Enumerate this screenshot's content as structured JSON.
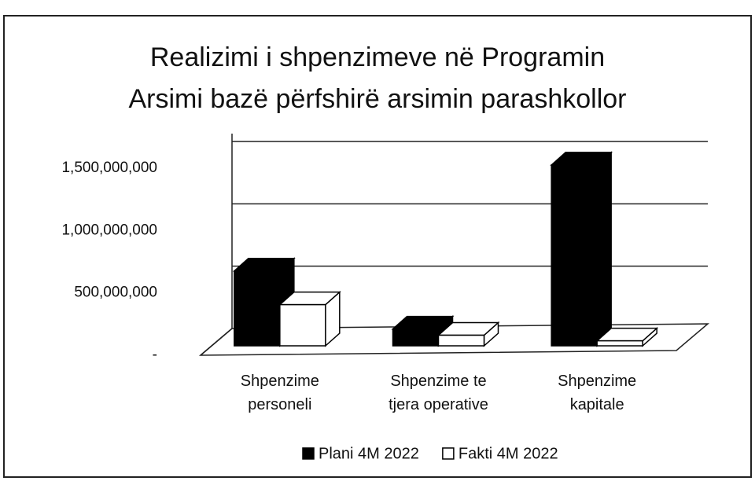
{
  "chart_data": {
    "type": "bar3d",
    "title": [
      "Realizimi i shpenzimeve në Programin",
      "Arsimi bazë përfshirë arsimin parashkollor"
    ],
    "categories": [
      "Shpenzime personeli",
      "Shpenzime te tjera operative",
      "Shpenzime kapitale"
    ],
    "series": [
      {
        "name": "Plani 4M 2022",
        "color": "#000000",
        "values": [
          600000000,
          135000000,
          1450000000
        ]
      },
      {
        "name": "Fakti 4M 2022",
        "color": "#ffffff",
        "values": [
          330000000,
          85000000,
          40000000
        ]
      }
    ],
    "ylim": [
      0,
      1500000000
    ],
    "yticks": [
      {
        "value": 0,
        "label": "-"
      },
      {
        "value": 500000000,
        "label": "500,000,000"
      },
      {
        "value": 1000000000,
        "label": "1,000,000,000"
      },
      {
        "value": 1500000000,
        "label": "1,500,000,000"
      }
    ],
    "grid": true,
    "legend": "bottom"
  }
}
